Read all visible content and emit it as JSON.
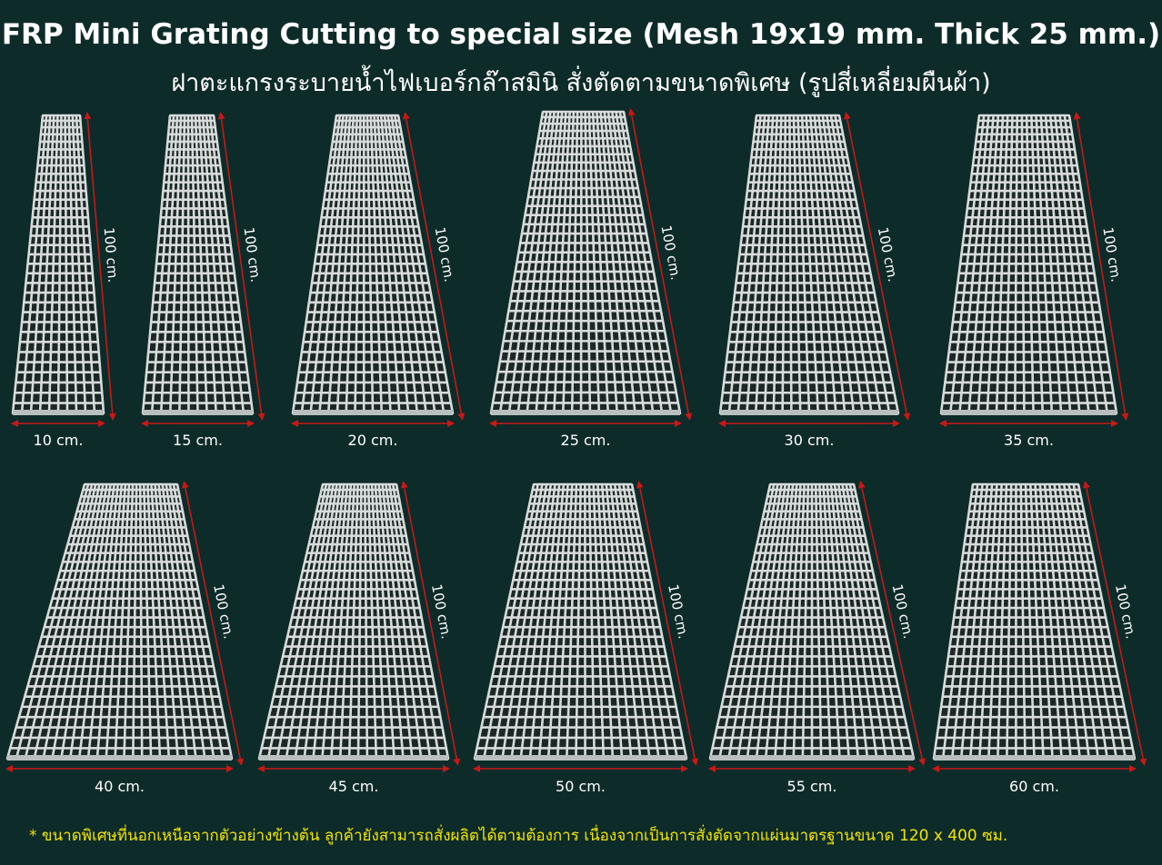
{
  "header": {
    "title": "FRP Mini Grating  Cutting to special size (Mesh 19x19 mm. Thick 25 mm.)",
    "subtitle": "ฝาตะแกรงระบายน้ำไฟเบอร์กล๊าสมินิ สั่งตัดตามขนาดพิเศษ (รูปสี่เหลี่ยมผืนผ้า)"
  },
  "panels": [
    {
      "width_label": "10 cm.",
      "length_label": "100 cm."
    },
    {
      "width_label": "15 cm.",
      "length_label": "100 cm."
    },
    {
      "width_label": "20 cm.",
      "length_label": "100 cm."
    },
    {
      "width_label": "25 cm.",
      "length_label": "100 cm."
    },
    {
      "width_label": "30 cm.",
      "length_label": "100 cm."
    },
    {
      "width_label": "35 cm.",
      "length_label": "100 cm."
    },
    {
      "width_label": "40 cm.",
      "length_label": "100 cm."
    },
    {
      "width_label": "45 cm.",
      "length_label": "100 cm."
    },
    {
      "width_label": "50 cm.",
      "length_label": "100 cm."
    },
    {
      "width_label": "55 cm.",
      "length_label": "100 cm."
    },
    {
      "width_label": "60 cm.",
      "length_label": "100 cm."
    }
  ],
  "footnote": "* ขนาดพิเศษที่นอกเหนือจากตัวอย่างข้างต้น  ลูกค้ายังสามารถสั่งผลิตได้ตามต้องการ เนื่องจากเป็นการสั่งตัดจากแผ่นมาตรฐานขนาด 120 x 400 ซม."
}
